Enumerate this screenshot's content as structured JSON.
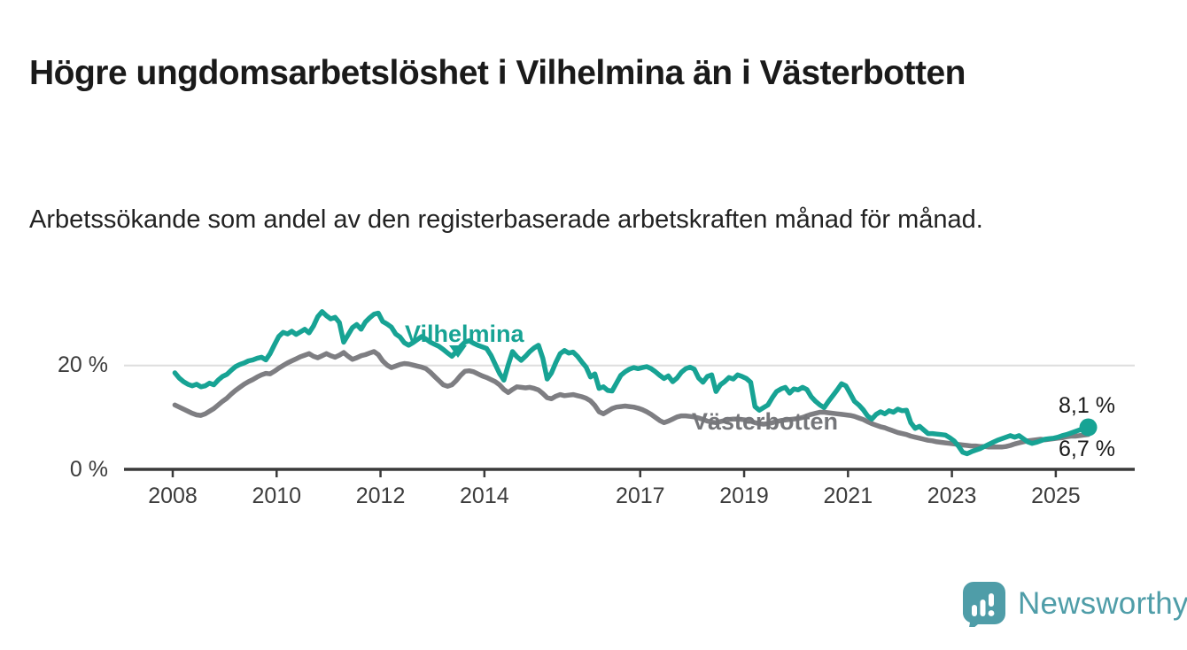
{
  "title": "Högre ungdomsarbetslöshet i Vilhelmina än i Västerbotten",
  "subtitle": "Arbetssökande som andel av den registerbaserade arbetskraften månad för månad.",
  "colors": {
    "vilhelmina": "#17a394",
    "vasterbotten": "#7e7e82",
    "axis": "#3a3a3a",
    "grid": "#dedede",
    "logo": "#4f9da8"
  },
  "chart_data": {
    "type": "line",
    "x_unit": "month",
    "x_start": "2008-01",
    "x_end": "2025-08",
    "x_tick_years": [
      2008,
      2010,
      2012,
      2014,
      2017,
      2019,
      2021,
      2023,
      2025
    ],
    "x_tick_labels": [
      "2008",
      "2010",
      "2012",
      "2014",
      "2017",
      "2019",
      "2021",
      "2023",
      "2025"
    ],
    "y_ticks": [
      {
        "value": 0,
        "label": "0 %"
      },
      {
        "value": 20,
        "label": "20 %"
      }
    ],
    "ylim": [
      0,
      33
    ],
    "grid": "y-at-20-only",
    "legend_position": "inline-labels-on-lines",
    "series": [
      {
        "name": "Vilhelmina",
        "color": "#17a394",
        "end_label": "8,1 %",
        "end_value": 8.1,
        "values": [
          18.6,
          17.6,
          16.9,
          16.4,
          16.1,
          16.4,
          15.9,
          16.1,
          16.6,
          16.3,
          17.2,
          17.9,
          18.3,
          19.1,
          19.8,
          20.2,
          20.5,
          20.9,
          21.1,
          21.4,
          21.6,
          21.1,
          22.3,
          24.0,
          25.6,
          26.4,
          26.1,
          26.6,
          26.0,
          26.5,
          27.0,
          26.3,
          27.6,
          29.4,
          30.4,
          29.6,
          29.0,
          29.3,
          28.3,
          24.5,
          25.9,
          27.3,
          27.9,
          27.0,
          28.4,
          29.2,
          29.9,
          30.1,
          28.5,
          28.0,
          27.4,
          26.1,
          25.5,
          24.4,
          23.9,
          24.4,
          25.0,
          25.6,
          25.1,
          24.5,
          24.1,
          23.7,
          23.1,
          22.4,
          21.8,
          22.7,
          23.7,
          24.5,
          24.8,
          24.3,
          23.9,
          23.6,
          23.3,
          22.0,
          20.2,
          18.5,
          17.2,
          20.1,
          22.7,
          21.7,
          21.0,
          21.8,
          22.7,
          23.4,
          23.9,
          21.4,
          17.4,
          18.6,
          20.6,
          22.3,
          22.9,
          22.4,
          22.6,
          21.8,
          20.7,
          19.7,
          17.8,
          18.4,
          15.6,
          15.9,
          15.2,
          15.1,
          16.6,
          18.1,
          18.8,
          19.3,
          19.6,
          19.4,
          19.6,
          19.8,
          19.4,
          18.8,
          18.1,
          17.5,
          18.0,
          16.9,
          17.6,
          18.7,
          19.4,
          19.7,
          19.3,
          17.6,
          16.8,
          17.9,
          18.2,
          15.0,
          16.3,
          16.9,
          17.7,
          17.4,
          18.2,
          17.9,
          17.5,
          16.8,
          12.1,
          11.4,
          11.9,
          12.4,
          13.8,
          15.0,
          15.5,
          15.8,
          14.7,
          15.5,
          15.3,
          15.8,
          15.4,
          14.0,
          13.1,
          12.4,
          11.9,
          13.1,
          14.2,
          15.3,
          16.5,
          16.1,
          14.6,
          13.1,
          12.4,
          11.5,
          10.3,
          9.7,
          10.6,
          11.1,
          10.7,
          11.3,
          11.0,
          11.6,
          11.3,
          11.4,
          9.0,
          7.9,
          8.3,
          7.6,
          6.9,
          6.9,
          6.8,
          6.7,
          6.6,
          6.1,
          5.5,
          4.5,
          3.3,
          3.0,
          3.4,
          3.7,
          4.0,
          4.4,
          4.8,
          5.2,
          5.6,
          5.9,
          6.2,
          6.5,
          6.2,
          6.5,
          5.9,
          5.3,
          5.0,
          5.2,
          5.5,
          5.8,
          5.9,
          6.0,
          6.2,
          6.5,
          6.7,
          7.0,
          7.3,
          7.6,
          7.9,
          8.1
        ]
      },
      {
        "name": "Västerbotten",
        "color": "#7e7e82",
        "end_label": "6,7 %",
        "end_value": 6.7,
        "values": [
          12.4,
          12.0,
          11.6,
          11.2,
          10.8,
          10.5,
          10.4,
          10.7,
          11.2,
          11.7,
          12.4,
          13.1,
          13.7,
          14.5,
          15.2,
          15.8,
          16.4,
          16.9,
          17.3,
          17.8,
          18.2,
          18.5,
          18.4,
          18.9,
          19.5,
          20.0,
          20.5,
          20.9,
          21.3,
          21.7,
          22.0,
          22.3,
          21.8,
          21.5,
          21.9,
          22.3,
          21.9,
          21.6,
          22.0,
          22.5,
          21.8,
          21.2,
          21.5,
          21.9,
          22.1,
          22.4,
          22.7,
          22.1,
          20.9,
          20.1,
          19.6,
          19.9,
          20.2,
          20.4,
          20.3,
          20.1,
          19.9,
          19.7,
          19.4,
          18.7,
          17.9,
          17.1,
          16.3,
          16.0,
          16.3,
          17.1,
          18.1,
          18.9,
          19.0,
          18.8,
          18.4,
          18.0,
          17.7,
          17.3,
          16.9,
          16.3,
          15.4,
          14.8,
          15.4,
          15.9,
          15.8,
          15.7,
          15.8,
          15.6,
          15.3,
          14.6,
          13.8,
          13.6,
          14.1,
          14.4,
          14.2,
          14.3,
          14.4,
          14.2,
          14.0,
          13.7,
          13.2,
          12.3,
          11.1,
          10.7,
          11.2,
          11.7,
          12.0,
          12.1,
          12.2,
          12.1,
          12.0,
          11.8,
          11.5,
          11.1,
          10.6,
          10.0,
          9.4,
          9.0,
          9.3,
          9.7,
          10.1,
          10.3,
          10.3,
          10.2,
          10.1,
          9.9,
          9.6,
          9.3,
          9.1,
          9.0,
          9.2,
          9.4,
          9.6,
          9.7,
          9.7,
          9.6,
          9.5,
          9.3,
          9.0,
          8.8,
          8.7,
          8.8,
          9.0,
          9.2,
          9.4,
          9.5,
          9.6,
          9.7,
          9.8,
          10.0,
          10.3,
          10.6,
          10.8,
          11.0,
          11.0,
          10.9,
          10.8,
          10.7,
          10.6,
          10.5,
          10.4,
          10.2,
          9.9,
          9.6,
          9.2,
          8.8,
          8.5,
          8.2,
          8.0,
          7.7,
          7.4,
          7.1,
          6.9,
          6.7,
          6.4,
          6.2,
          6.0,
          5.8,
          5.6,
          5.5,
          5.3,
          5.2,
          5.1,
          5.0,
          4.9,
          4.8,
          4.7,
          4.6,
          4.5,
          4.5,
          4.4,
          4.4,
          4.3,
          4.3,
          4.3,
          4.3,
          4.4,
          4.6,
          4.9,
          5.1,
          5.3,
          5.5,
          5.6,
          5.7,
          5.8,
          5.7,
          5.8,
          5.9,
          6.0,
          6.1,
          6.3,
          6.4,
          6.4,
          6.5,
          6.6,
          6.7
        ]
      }
    ]
  },
  "branding": {
    "logo_text": "Newsworthy",
    "logo_icon": "bar-chart-speech-bubble-icon"
  }
}
